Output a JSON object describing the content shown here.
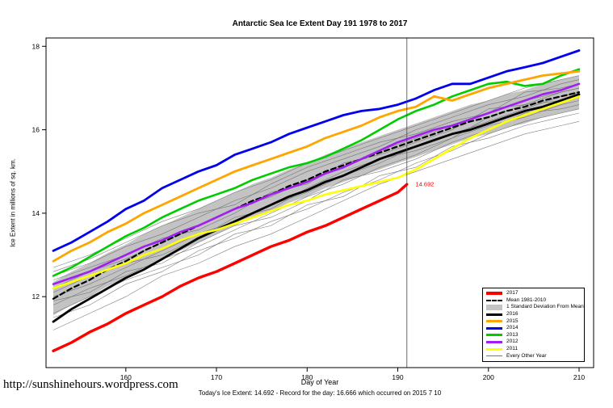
{
  "page": {
    "title": "Antarctic Sea Ice Extent Day 191 1978 to 2017",
    "y_axis_label": "Ice Extent in millions of sq. km.",
    "x_axis_label": "Day of Year",
    "x_axis_subtitle": "Today's Ice Extent: 14.692  - Record for the day: 16.666 which occurred on 2015 7 10",
    "footer_url": "http://sunshinehours.wordpress.com"
  },
  "chart_data": {
    "type": "line",
    "title": "Antarctic Sea Ice Extent Day 191 1978 to 2017",
    "xlabel": "Day of Year",
    "ylabel": "Ice Extent in millions of sq. km.",
    "xlim": [
      151.2,
      211.6
    ],
    "ylim": [
      10.3,
      18.2
    ],
    "x_ticks": [
      160,
      170,
      180,
      190,
      200,
      210
    ],
    "y_ticks": [
      12,
      14,
      16,
      18
    ],
    "grid": false,
    "legend_position": "bottom-right",
    "vline_x": 191,
    "annotation": {
      "x": 191.6,
      "y": 14.692,
      "text": "14.692",
      "color": "#FF0000"
    },
    "band": {
      "name": "1 Standard Deviation From Mean",
      "color": "#c3c3c3",
      "x_start": 152,
      "x_step": 2,
      "values_upper": [
        12.35,
        12.6,
        12.8,
        13.05,
        13.25,
        13.5,
        13.7,
        13.9,
        14.1,
        14.3,
        14.5,
        14.7,
        14.85,
        15.05,
        15.2,
        15.4,
        15.55,
        15.7,
        15.85,
        16.0,
        16.15,
        16.3,
        16.45,
        16.6,
        16.7,
        16.85,
        16.95,
        17.1,
        17.2,
        17.3
      ],
      "values_lower": [
        11.55,
        11.8,
        12.0,
        12.25,
        12.45,
        12.7,
        12.9,
        13.1,
        13.3,
        13.5,
        13.7,
        13.9,
        14.05,
        14.25,
        14.4,
        14.6,
        14.75,
        14.9,
        15.05,
        15.2,
        15.35,
        15.5,
        15.65,
        15.8,
        15.9,
        16.05,
        16.15,
        16.3,
        16.4,
        16.5
      ]
    },
    "other_years": {
      "name": "Every Other Year",
      "color": "#666666",
      "width": 0.6,
      "x": [
        152,
        156,
        160,
        164,
        168,
        172,
        176,
        180,
        184,
        188,
        192,
        196,
        200,
        204,
        208,
        210
      ],
      "series": [
        [
          11.2,
          11.6,
          12.0,
          12.5,
          12.8,
          13.2,
          13.5,
          13.9,
          14.3,
          14.7,
          15.0,
          15.3,
          15.6,
          15.9,
          16.1,
          16.2
        ],
        [
          11.5,
          11.8,
          12.3,
          12.6,
          13.1,
          13.4,
          13.8,
          14.1,
          14.5,
          14.8,
          15.2,
          15.5,
          15.9,
          16.2,
          16.4,
          16.5
        ],
        [
          11.8,
          12.2,
          12.5,
          12.9,
          13.2,
          13.6,
          14.0,
          14.4,
          14.7,
          15.1,
          15.4,
          15.8,
          16.1,
          16.3,
          16.6,
          16.7
        ],
        [
          12.0,
          12.3,
          12.7,
          13.1,
          13.5,
          13.8,
          14.2,
          14.5,
          14.9,
          15.2,
          15.6,
          15.9,
          16.2,
          16.5,
          16.8,
          16.9
        ],
        [
          12.2,
          12.6,
          12.9,
          13.3,
          13.7,
          14.1,
          14.4,
          14.8,
          15.1,
          15.5,
          15.8,
          16.1,
          16.4,
          16.7,
          16.9,
          17.0
        ],
        [
          12.5,
          12.8,
          13.2,
          13.5,
          13.9,
          14.3,
          14.6,
          15.0,
          15.3,
          15.6,
          16.0,
          16.3,
          16.6,
          16.8,
          17.1,
          17.2
        ],
        [
          12.7,
          13.0,
          13.4,
          13.8,
          14.1,
          14.5,
          14.8,
          15.2,
          15.5,
          15.8,
          16.1,
          16.4,
          16.7,
          17.0,
          17.2,
          17.3
        ],
        [
          11.9,
          12.1,
          12.6,
          12.8,
          13.3,
          13.7,
          13.9,
          14.3,
          14.8,
          15.0,
          15.3,
          15.7,
          16.0,
          16.4,
          16.5,
          16.6
        ],
        [
          12.4,
          12.7,
          13.0,
          13.4,
          13.6,
          14.0,
          14.5,
          14.7,
          15.2,
          15.4,
          15.7,
          16.0,
          16.5,
          16.6,
          16.9,
          17.0
        ],
        [
          11.6,
          12.0,
          12.4,
          12.7,
          13.0,
          13.5,
          13.7,
          14.2,
          14.4,
          14.9,
          15.1,
          15.6,
          15.8,
          16.1,
          16.3,
          16.4
        ],
        [
          12.1,
          12.5,
          12.8,
          13.0,
          13.4,
          13.9,
          14.1,
          14.6,
          15.0,
          15.3,
          15.5,
          15.8,
          16.3,
          16.6,
          16.7,
          16.8
        ],
        [
          12.6,
          12.9,
          13.3,
          13.7,
          14.0,
          14.2,
          14.7,
          15.1,
          15.4,
          15.7,
          15.9,
          16.2,
          16.4,
          16.9,
          17.0,
          17.1
        ]
      ]
    },
    "series": [
      {
        "name": "2016",
        "color": "#000000",
        "width": 2.8,
        "x_start": 152,
        "x_step": 2,
        "values": [
          11.4,
          11.7,
          11.95,
          12.2,
          12.45,
          12.65,
          12.9,
          13.15,
          13.4,
          13.6,
          13.8,
          14.0,
          14.2,
          14.4,
          14.55,
          14.75,
          14.9,
          15.1,
          15.3,
          15.45,
          15.6,
          15.75,
          15.9,
          16.0,
          16.15,
          16.3,
          16.45,
          16.55,
          16.7,
          16.85
        ]
      },
      {
        "name": "Mean 1981-2010",
        "color": "#000000",
        "width": 2.2,
        "dash": "6,4",
        "x_start": 152,
        "x_step": 2,
        "values": [
          11.95,
          12.2,
          12.4,
          12.65,
          12.85,
          13.1,
          13.3,
          13.5,
          13.7,
          13.9,
          14.1,
          14.3,
          14.45,
          14.65,
          14.8,
          15.0,
          15.15,
          15.3,
          15.45,
          15.6,
          15.75,
          15.9,
          16.05,
          16.2,
          16.3,
          16.45,
          16.55,
          16.7,
          16.8,
          16.9
        ]
      },
      {
        "name": "2011",
        "color": "#FFFF00",
        "width": 2.6,
        "x_start": 152,
        "x_step": 2,
        "values": [
          12.2,
          12.35,
          12.5,
          12.65,
          12.8,
          13.0,
          13.15,
          13.35,
          13.5,
          13.6,
          13.75,
          13.9,
          14.05,
          14.2,
          14.3,
          14.45,
          14.55,
          14.65,
          14.75,
          14.85,
          15.05,
          15.3,
          15.55,
          15.8,
          16.0,
          16.2,
          16.35,
          16.5,
          16.65,
          16.8
        ]
      },
      {
        "name": "2012",
        "color": "#A020F0",
        "width": 2.6,
        "x_start": 152,
        "x_step": 2,
        "values": [
          12.3,
          12.45,
          12.6,
          12.8,
          13.0,
          13.2,
          13.35,
          13.55,
          13.7,
          13.9,
          14.1,
          14.25,
          14.45,
          14.6,
          14.75,
          14.95,
          15.1,
          15.3,
          15.5,
          15.7,
          15.85,
          16.0,
          16.1,
          16.25,
          16.4,
          16.55,
          16.7,
          16.85,
          16.95,
          17.1
        ]
      },
      {
        "name": "2013",
        "color": "#00CC00",
        "width": 2.6,
        "x_start": 152,
        "x_step": 2,
        "values": [
          12.5,
          12.7,
          12.95,
          13.2,
          13.45,
          13.65,
          13.9,
          14.1,
          14.3,
          14.45,
          14.6,
          14.8,
          14.95,
          15.1,
          15.2,
          15.35,
          15.55,
          15.75,
          16.0,
          16.25,
          16.45,
          16.6,
          16.8,
          16.95,
          17.1,
          17.15,
          17.05,
          17.1,
          17.3,
          17.45
        ]
      },
      {
        "name": "2015",
        "color": "#FFA500",
        "width": 2.8,
        "x_start": 152,
        "x_step": 2,
        "values": [
          12.85,
          13.1,
          13.3,
          13.55,
          13.75,
          14.0,
          14.2,
          14.4,
          14.6,
          14.8,
          15.0,
          15.15,
          15.3,
          15.45,
          15.6,
          15.8,
          15.95,
          16.1,
          16.3,
          16.45,
          16.55,
          16.8,
          16.7,
          16.85,
          17.0,
          17.1,
          17.2,
          17.3,
          17.35,
          17.4
        ]
      },
      {
        "name": "2014",
        "color": "#0000EE",
        "width": 2.8,
        "x_start": 152,
        "x_step": 2,
        "values": [
          13.1,
          13.3,
          13.55,
          13.8,
          14.1,
          14.3,
          14.6,
          14.8,
          15.0,
          15.15,
          15.4,
          15.55,
          15.7,
          15.9,
          16.05,
          16.2,
          16.35,
          16.45,
          16.5,
          16.6,
          16.75,
          16.95,
          17.1,
          17.1,
          17.25,
          17.4,
          17.5,
          17.6,
          17.75,
          17.9
        ]
      },
      {
        "name": "2017",
        "color": "#FF0000",
        "width": 3.4,
        "x": [
          152,
          154,
          156,
          158,
          160,
          162,
          164,
          166,
          168,
          170,
          172,
          174,
          176,
          178,
          180,
          182,
          184,
          186,
          188,
          190,
          191
        ],
        "values": [
          10.7,
          10.9,
          11.15,
          11.35,
          11.6,
          11.8,
          12.0,
          12.25,
          12.45,
          12.6,
          12.8,
          13.0,
          13.2,
          13.35,
          13.55,
          13.7,
          13.9,
          14.1,
          14.3,
          14.5,
          14.692
        ]
      }
    ]
  },
  "legend": {
    "items": [
      {
        "label": "2017",
        "type": "line",
        "color": "#FF0000",
        "width": 4
      },
      {
        "label": "Mean 1981-2010",
        "type": "dash",
        "color": "#000000",
        "width": 2
      },
      {
        "label": "1 Standard Deviation From Mean",
        "type": "band",
        "color": "#c3c3c3",
        "width": 7
      },
      {
        "label": "2016",
        "type": "line",
        "color": "#000000",
        "width": 3
      },
      {
        "label": "2015",
        "type": "line",
        "color": "#FFA500",
        "width": 3
      },
      {
        "label": "2014",
        "type": "line",
        "color": "#0000EE",
        "width": 3
      },
      {
        "label": "2013",
        "type": "line",
        "color": "#00CC00",
        "width": 3
      },
      {
        "label": "2012",
        "type": "line",
        "color": "#A020F0",
        "width": 3
      },
      {
        "label": "2011",
        "type": "line",
        "color": "#FFFF00",
        "width": 3
      },
      {
        "label": "Every Other Year",
        "type": "line",
        "color": "#777777",
        "width": 1
      }
    ]
  }
}
